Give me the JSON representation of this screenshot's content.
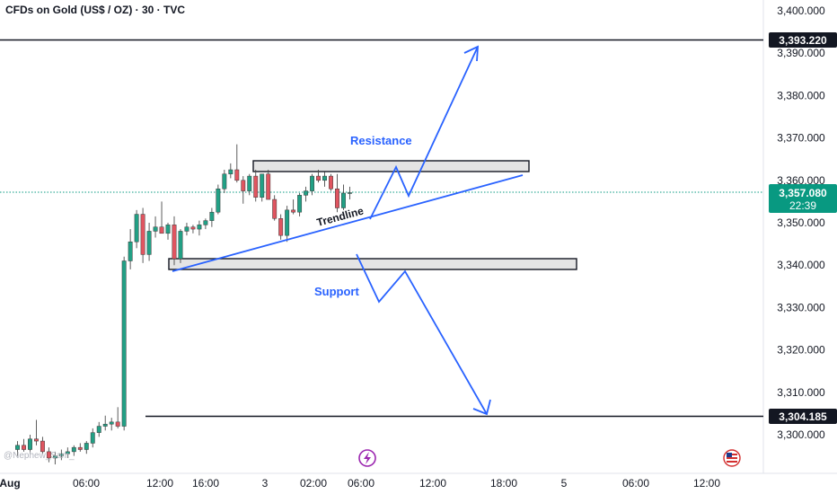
{
  "header": {
    "title": "CFDs on Gold (US$ / OZ) · 30 · TVC"
  },
  "price_axis": {
    "ticks": [
      "3,400.000",
      "3,390.000",
      "3,380.000",
      "3,370.000",
      "3,360.000",
      "3,350.000",
      "3,340.000",
      "3,330.000",
      "3,320.000",
      "3,310.000",
      "3,300.000"
    ],
    "labels": {
      "upper": "3,393.220",
      "current_price": "3,357.080",
      "countdown": "22:39",
      "lower": "3,304.185"
    }
  },
  "time_axis": {
    "ticks": [
      "Aug",
      "06:00",
      "12:00",
      "16:00",
      "3",
      "02:00",
      "06:00",
      "12:00",
      "18:00",
      "5",
      "06:00",
      "12:00"
    ]
  },
  "annotations": {
    "resistance": "Resistance",
    "support": "Support",
    "trendline": "Trendline",
    "watermark": "@Nephew_Sam_"
  },
  "colors": {
    "up": "#22a085",
    "down": "#e05560",
    "accent": "#2962ff",
    "current": "#089981",
    "level": "#131722"
  },
  "icons": {
    "event": "lightning-icon",
    "flag": "us-flag-icon"
  },
  "chart_data": {
    "type": "candlestick",
    "title": "CFDs on Gold (US$ / OZ) · 30 · TVC",
    "ylim": [
      3295,
      3402
    ],
    "levels": [
      3393.22,
      3357.08,
      3304.185
    ],
    "zones": [
      {
        "name": "Resistance",
        "low": 3362.2,
        "high": 3364.8
      },
      {
        "name": "Support",
        "low": 3339.5,
        "high": 3342.0
      }
    ],
    "trendline": {
      "from": 3338.5,
      "to": 3361.2
    },
    "candles": [
      [
        3296.5,
        3298.5,
        3295.0,
        3297.5
      ],
      [
        3297.5,
        3299.0,
        3296.0,
        3296.5
      ],
      [
        3296.5,
        3300.0,
        3295.5,
        3299.0
      ],
      [
        3299.0,
        3303.5,
        3297.5,
        3298.5
      ],
      [
        3298.5,
        3299.5,
        3295.5,
        3296.0
      ],
      [
        3296.0,
        3297.0,
        3293.5,
        3294.5
      ],
      [
        3294.5,
        3296.0,
        3293.0,
        3295.0
      ],
      [
        3295.0,
        3296.5,
        3294.0,
        3295.5
      ],
      [
        3295.5,
        3297.0,
        3294.5,
        3296.0
      ],
      [
        3296.0,
        3297.5,
        3295.0,
        3297.0
      ],
      [
        3297.0,
        3298.0,
        3296.0,
        3296.5
      ],
      [
        3296.5,
        3298.5,
        3295.5,
        3298.0
      ],
      [
        3298.0,
        3301.5,
        3297.0,
        3300.5
      ],
      [
        3300.5,
        3303.0,
        3299.5,
        3302.0
      ],
      [
        3302.0,
        3304.5,
        3301.0,
        3302.5
      ],
      [
        3302.5,
        3304.0,
        3301.0,
        3303.0
      ],
      [
        3303.0,
        3306.5,
        3301.5,
        3302.0
      ],
      [
        3302.0,
        3342.0,
        3301.0,
        3341.0
      ],
      [
        3341.0,
        3348.5,
        3339.0,
        3345.5
      ],
      [
        3345.5,
        3353.0,
        3344.0,
        3352.0
      ],
      [
        3352.0,
        3353.5,
        3340.5,
        3342.5
      ],
      [
        3342.5,
        3350.0,
        3341.0,
        3348.0
      ],
      [
        3348.0,
        3351.5,
        3346.5,
        3349.0
      ],
      [
        3349.0,
        3355.0,
        3348.0,
        3347.5
      ],
      [
        3347.5,
        3350.0,
        3346.0,
        3349.5
      ],
      [
        3349.5,
        3351.5,
        3340.0,
        3341.5
      ],
      [
        3341.5,
        3348.5,
        3340.5,
        3348.0
      ],
      [
        3348.0,
        3350.0,
        3347.0,
        3349.0
      ],
      [
        3349.0,
        3349.5,
        3347.5,
        3348.5
      ],
      [
        3348.5,
        3350.5,
        3347.0,
        3349.5
      ],
      [
        3349.5,
        3351.0,
        3348.5,
        3350.5
      ],
      [
        3350.5,
        3353.5,
        3349.0,
        3352.5
      ],
      [
        3352.5,
        3359.0,
        3352.0,
        3358.0
      ],
      [
        3358.0,
        3362.5,
        3357.0,
        3361.5
      ],
      [
        3361.5,
        3364.0,
        3360.5,
        3362.5
      ],
      [
        3362.5,
        3368.5,
        3359.5,
        3360.0
      ],
      [
        3360.0,
        3361.0,
        3354.5,
        3357.5
      ],
      [
        3357.5,
        3361.5,
        3356.5,
        3361.0
      ],
      [
        3361.0,
        3362.5,
        3355.0,
        3356.0
      ],
      [
        3356.0,
        3361.5,
        3355.0,
        3361.5
      ],
      [
        3361.5,
        3362.5,
        3355.5,
        3355.5
      ],
      [
        3355.5,
        3356.5,
        3350.5,
        3351.0
      ],
      [
        3351.0,
        3352.0,
        3346.0,
        3347.0
      ],
      [
        3347.0,
        3354.0,
        3345.5,
        3353.0
      ],
      [
        3353.0,
        3355.5,
        3352.0,
        3352.5
      ],
      [
        3352.5,
        3357.0,
        3351.5,
        3356.5
      ],
      [
        3356.5,
        3358.5,
        3355.0,
        3357.5
      ],
      [
        3357.5,
        3361.5,
        3356.5,
        3361.0
      ],
      [
        3361.0,
        3362.5,
        3359.5,
        3360.0
      ],
      [
        3360.0,
        3362.0,
        3358.5,
        3361.0
      ],
      [
        3361.0,
        3361.5,
        3357.5,
        3358.0
      ],
      [
        3358.0,
        3361.5,
        3352.5,
        3353.5
      ],
      [
        3353.5,
        3359.0,
        3353.0,
        3357.0
      ],
      [
        3357.0,
        3358.5,
        3355.5,
        3357.1
      ]
    ]
  }
}
